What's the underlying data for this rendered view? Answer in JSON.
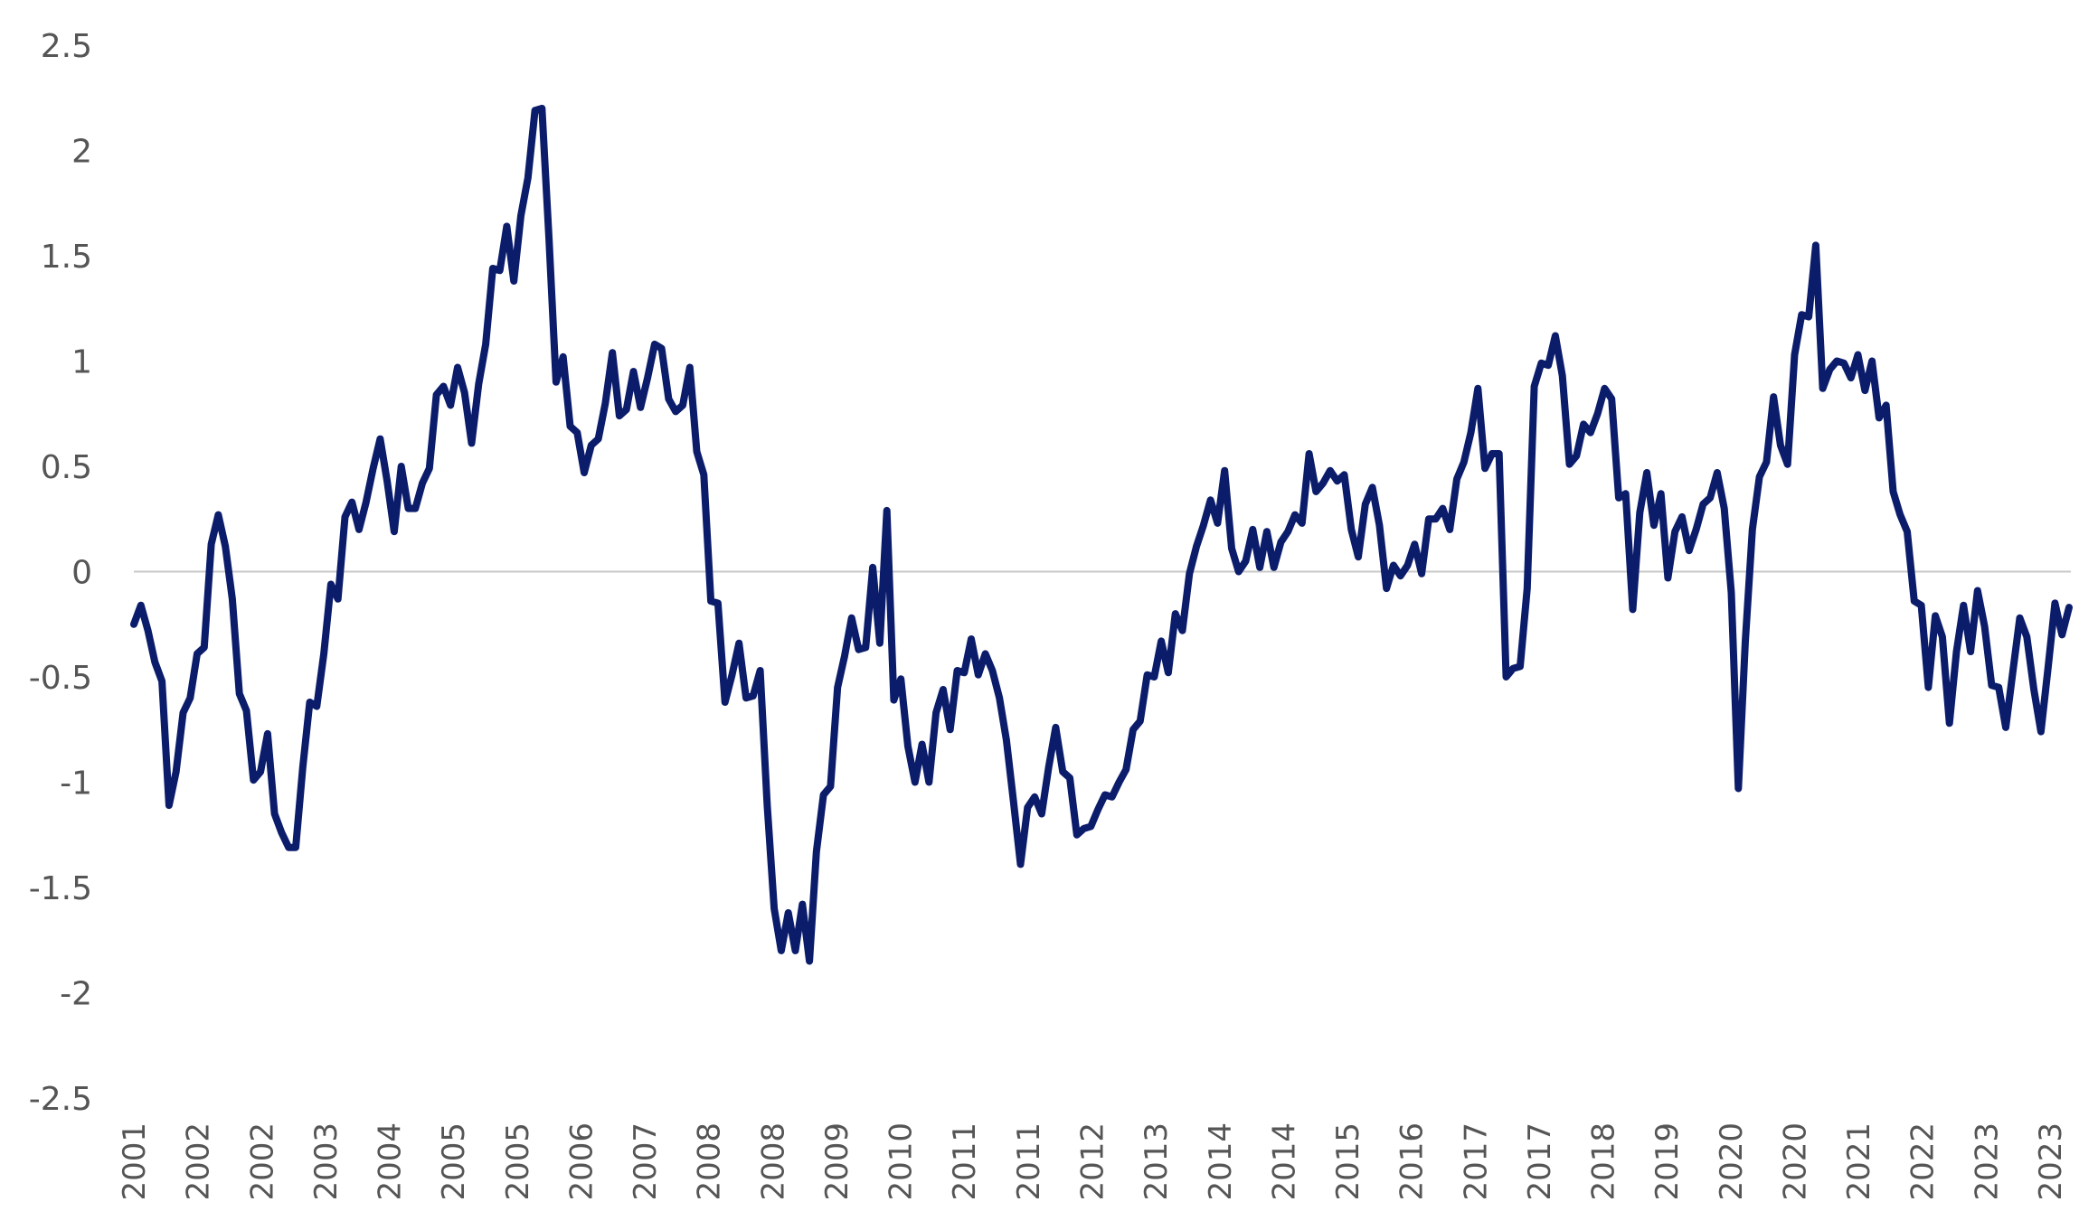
{
  "chart_data": {
    "type": "line",
    "title": "",
    "xlabel": "",
    "ylabel": "",
    "ylim": [
      -2.5,
      2.5
    ],
    "yticks": [
      "2.5",
      "2",
      "1.5",
      "1",
      "0.5",
      "0",
      "-0.5",
      "-1",
      "-1.5",
      "-2",
      "-2.5"
    ],
    "xtick_labels": [
      "2001",
      "2002",
      "2002",
      "2003",
      "2004",
      "2005",
      "2005",
      "2006",
      "2007",
      "2008",
      "2008",
      "2009",
      "2010",
      "2011",
      "2011",
      "2012",
      "2013",
      "2014",
      "2014",
      "2015",
      "2016",
      "2017",
      "2017",
      "2018",
      "2019",
      "2020",
      "2020",
      "2021",
      "2022",
      "2023",
      "2023"
    ],
    "grid": false,
    "reference_line": 0,
    "line_color": "#0b1c6b",
    "series": [
      {
        "values": [
          -0.25,
          -0.16,
          -0.28,
          -0.43,
          -0.52,
          -1.11,
          -0.95,
          -0.67,
          -0.6,
          -0.39,
          -0.36,
          0.13,
          0.27,
          0.12,
          -0.13,
          -0.58,
          -0.66,
          -0.99,
          -0.95,
          -0.77,
          -1.15,
          -1.24,
          -1.31,
          -1.31,
          -0.93,
          -0.62,
          -0.64,
          -0.39,
          -0.06,
          -0.13,
          0.26,
          0.33,
          0.2,
          0.33,
          0.49,
          0.63,
          0.43,
          0.19,
          0.5,
          0.3,
          0.3,
          0.42,
          0.49,
          0.84,
          0.88,
          0.79,
          0.97,
          0.85,
          0.61,
          0.89,
          1.08,
          1.44,
          1.43,
          1.64,
          1.38,
          1.69,
          1.87,
          2.19,
          2.2,
          1.58,
          0.9,
          1.02,
          0.69,
          0.66,
          0.47,
          0.6,
          0.63,
          0.8,
          1.04,
          0.74,
          0.77,
          0.95,
          0.78,
          0.92,
          1.08,
          1.06,
          0.82,
          0.76,
          0.79,
          0.97,
          0.57,
          0.46,
          -0.14,
          -0.15,
          -0.62,
          -0.49,
          -0.34,
          -0.6,
          -0.59,
          -0.47,
          -1.11,
          -1.6,
          -1.8,
          -1.62,
          -1.8,
          -1.58,
          -1.85,
          -1.33,
          -1.06,
          -1.02,
          -0.55,
          -0.4,
          -0.22,
          -0.37,
          -0.36,
          0.02,
          -0.34,
          0.29,
          -0.61,
          -0.51,
          -0.83,
          -1.0,
          -0.82,
          -1.0,
          -0.67,
          -0.56,
          -0.75,
          -0.47,
          -0.48,
          -0.32,
          -0.49,
          -0.39,
          -0.47,
          -0.6,
          -0.8,
          -1.09,
          -1.39,
          -1.12,
          -1.07,
          -1.15,
          -0.93,
          -0.74,
          -0.95,
          -0.98,
          -1.25,
          -1.22,
          -1.21,
          -1.13,
          -1.06,
          -1.07,
          -1.0,
          -0.94,
          -0.75,
          -0.71,
          -0.49,
          -0.5,
          -0.33,
          -0.48,
          -0.2,
          -0.28,
          -0.01,
          0.12,
          0.22,
          0.34,
          0.23,
          0.48,
          0.11,
          0.0,
          0.05,
          0.2,
          0.02,
          0.19,
          0.02,
          0.14,
          0.19,
          0.27,
          0.23,
          0.56,
          0.38,
          0.42,
          0.48,
          0.43,
          0.46,
          0.2,
          0.07,
          0.32,
          0.4,
          0.22,
          -0.08,
          0.03,
          -0.02,
          0.03,
          0.13,
          -0.01,
          0.25,
          0.25,
          0.3,
          0.2,
          0.44,
          0.52,
          0.66,
          0.87,
          0.49,
          0.56,
          0.56,
          -0.5,
          -0.46,
          -0.45,
          -0.08,
          0.88,
          0.99,
          0.98,
          1.12,
          0.93,
          0.51,
          0.55,
          0.7,
          0.66,
          0.75,
          0.87,
          0.82,
          0.35,
          0.37,
          -0.18,
          0.28,
          0.47,
          0.22,
          0.37,
          -0.03,
          0.19,
          0.26,
          0.1,
          0.2,
          0.32,
          0.35,
          0.47,
          0.3,
          -0.1,
          -1.03,
          -0.33,
          0.2,
          0.45,
          0.52,
          0.83,
          0.6,
          0.51,
          1.03,
          1.22,
          1.21,
          1.55,
          0.87,
          0.96,
          1.0,
          0.99,
          0.92,
          1.03,
          0.86,
          1.0,
          0.73,
          0.79,
          0.38,
          0.27,
          0.19,
          -0.14,
          -0.16,
          -0.55,
          -0.21,
          -0.31,
          -0.72,
          -0.38,
          -0.16,
          -0.38,
          -0.09,
          -0.26,
          -0.54,
          -0.55,
          -0.74,
          -0.48,
          -0.22,
          -0.31,
          -0.56,
          -0.76,
          -0.46,
          -0.15,
          -0.3,
          -0.17
        ]
      }
    ]
  }
}
